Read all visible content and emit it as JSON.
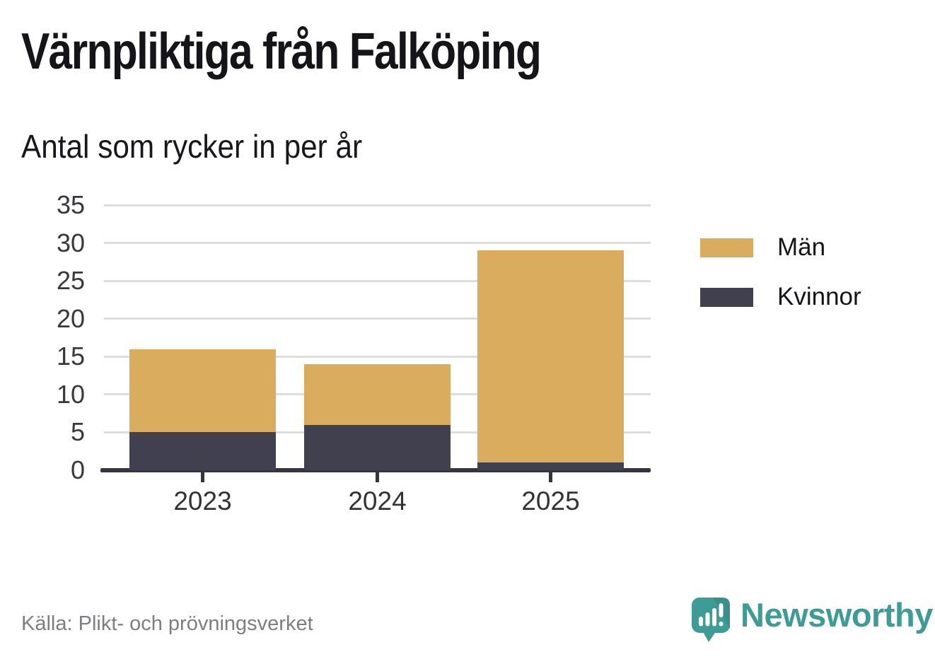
{
  "title": "Värnpliktiga från Falköping",
  "subtitle": "Antal som rycker in per år",
  "source": "Källa: Plikt- och prövningsverket",
  "brand": {
    "name": "Newsworthy",
    "color": "#3d9c96",
    "icon": "speech-bubble-bar-chart-icon"
  },
  "colors": {
    "men": "#d9ac5e",
    "women": "#41404e",
    "axis": "#35343f",
    "grid": "#dddddd",
    "tick_label": "#38383d",
    "title_text": "#141419",
    "source_text": "#7d7d84"
  },
  "chart_data": {
    "type": "bar",
    "stacked": true,
    "title": "Värnpliktiga från Falköping",
    "subtitle": "Antal som rycker in per år",
    "categories": [
      "2023",
      "2024",
      "2025"
    ],
    "series": [
      {
        "name": "Kvinnor",
        "color": "#41404e",
        "values": [
          5,
          6,
          1
        ]
      },
      {
        "name": "Män",
        "color": "#d9ac5e",
        "values": [
          11,
          8,
          28
        ]
      }
    ],
    "totals": [
      16,
      14,
      29
    ],
    "xlabel": "",
    "ylabel": "",
    "ylim": [
      0,
      35
    ],
    "yticks": [
      0,
      5,
      10,
      15,
      20,
      25,
      30,
      35
    ],
    "grid": true,
    "legend_position": "right",
    "legend": {
      "items": [
        {
          "label": "Män",
          "color": "#d9ac5e"
        },
        {
          "label": "Kvinnor",
          "color": "#41404e"
        }
      ]
    }
  }
}
